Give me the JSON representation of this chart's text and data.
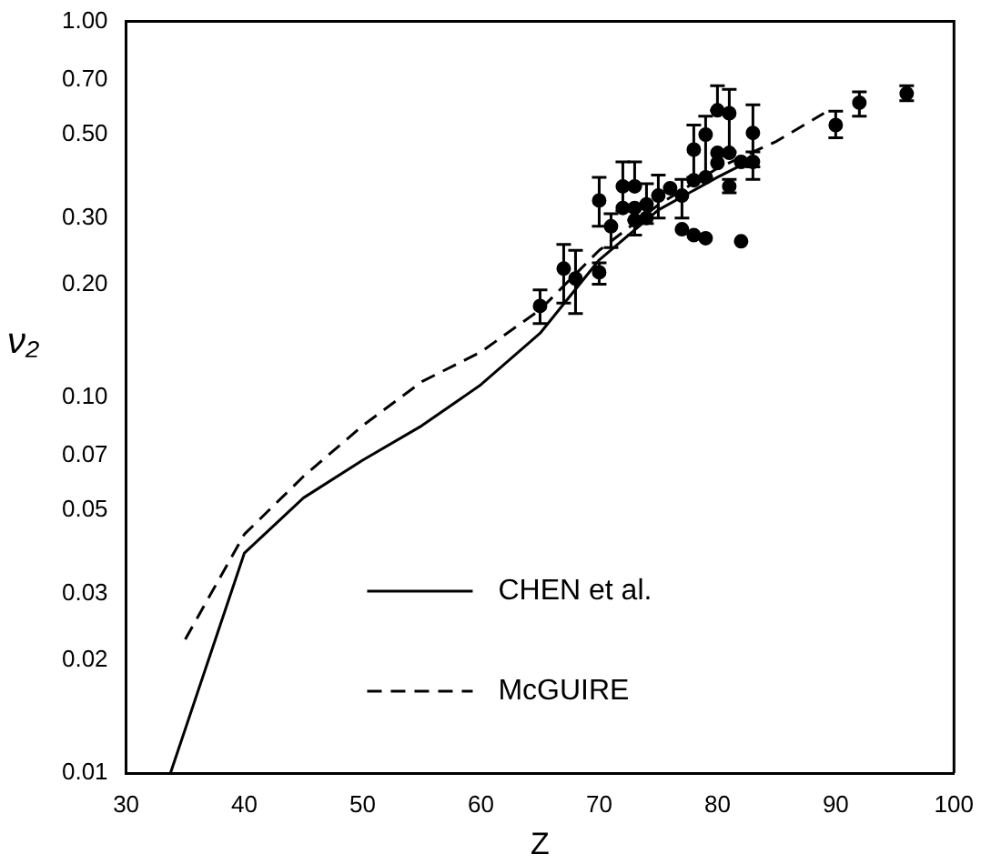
{
  "chart_data": {
    "type": "scatter",
    "xlabel": "Z",
    "ylabel": "ν₂",
    "log": "y",
    "grid": false,
    "legend": "bottom",
    "xlim": [
      30,
      100
    ],
    "xticks": [
      30,
      40,
      50,
      60,
      70,
      80,
      90,
      100
    ],
    "ylim": [
      0.01,
      1
    ],
    "yticks": [
      {
        "value": 0.01,
        "label": "0.01"
      },
      {
        "value": 0.02,
        "label": "0.02"
      },
      {
        "value": 0.03,
        "label": "0.03"
      },
      {
        "value": 0.05,
        "label": "0.05"
      },
      {
        "value": 0.07,
        "label": "0.07"
      },
      {
        "value": 0.1,
        "label": "0.10"
      },
      {
        "value": 0.2,
        "label": "0.20"
      },
      {
        "value": 0.3,
        "label": "0.30"
      },
      {
        "value": 0.5,
        "label": "0.50"
      },
      {
        "value": 0.7,
        "label": "0.70"
      },
      {
        "value": 1,
        "label": "1.00"
      }
    ],
    "series": [
      {
        "color": "#000000",
        "marker": "circle",
        "x": [
          65,
          67,
          68,
          70,
          70,
          71,
          72,
          72,
          73,
          73,
          73,
          74,
          74,
          75,
          76,
          77,
          77,
          78,
          79,
          82,
          78,
          78,
          79,
          79,
          80,
          80,
          80,
          81,
          81,
          81,
          82,
          83,
          83,
          90,
          92,
          96
        ],
        "values": [
          0.175,
          0.22,
          0.207,
          0.215,
          0.334,
          0.285,
          0.364,
          0.319,
          0.364,
          0.319,
          0.296,
          0.326,
          0.3,
          0.344,
          0.36,
          0.344,
          0.28,
          0.27,
          0.265,
          0.26,
          0.456,
          0.378,
          0.5,
          0.385,
          0.58,
          0.447,
          0.42,
          0.57,
          0.447,
          0.364,
          0.423,
          0.505,
          0.423,
          0.53,
          0.608,
          0.643
        ],
        "errors": [
          [
            0.157,
            0.193
          ],
          [
            0.178,
            0.255
          ],
          [
            0.167,
            0.246
          ],
          [
            0.2,
            0.228
          ],
          [
            0.285,
            0.385
          ],
          [
            0.25,
            0.308
          ],
          [
            0.313,
            0.423
          ],
          null,
          [
            0.364,
            0.423
          ],
          null,
          [
            0.27,
            0.296
          ],
          [
            0.29,
            0.37
          ],
          null,
          [
            0.3,
            0.39
          ],
          null,
          [
            0.3,
            0.38
          ],
          null,
          null,
          null,
          null,
          [
            0.385,
            0.53
          ],
          null,
          [
            0.385,
            0.56
          ],
          null,
          [
            0.58,
            0.675
          ],
          null,
          null,
          [
            0.45,
            0.66
          ],
          null,
          [
            0.35,
            0.38
          ],
          null,
          [
            0.41,
            0.6
          ],
          [
            0.38,
            0.45
          ],
          [
            0.49,
            0.577
          ],
          [
            0.56,
            0.65
          ],
          [
            0.615,
            0.675
          ]
        ]
      },
      {
        "type": "line",
        "name": "CHEN et al.",
        "color": "#000000",
        "marker": "none",
        "line_style": "solid",
        "x": [
          33.75,
          40,
          45,
          50,
          55,
          60,
          65,
          70,
          75,
          80,
          83
        ],
        "values": [
          0.01,
          0.0385,
          0.054,
          0.068,
          0.084,
          0.108,
          0.148,
          0.232,
          0.315,
          0.385,
          0.43
        ]
      },
      {
        "type": "line",
        "name": "McGUIRE",
        "color": "#000000",
        "marker": "none",
        "line_style": "dashed",
        "x": [
          35,
          40,
          45,
          50,
          55,
          60,
          65,
          70,
          75,
          80,
          85,
          89
        ],
        "values": [
          0.0227,
          0.0432,
          0.0616,
          0.084,
          0.11,
          0.132,
          0.171,
          0.246,
          0.325,
          0.407,
          0.48,
          0.57
        ]
      }
    ]
  }
}
